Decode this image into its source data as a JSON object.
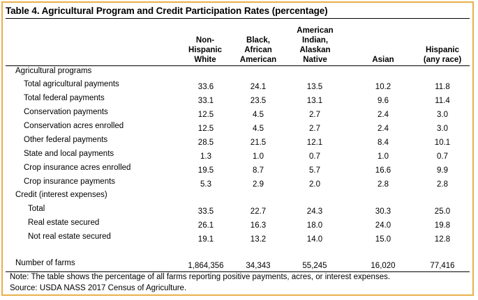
{
  "title": "Table 4. Agricultural Program and Credit Participation Rates (percentage)",
  "columns": [
    "Non-\nHispanic\nWhite",
    "Black,\nAfrican\nAmerican",
    "American\nIndian,\nAlaskan\nNative",
    "Asian",
    "Hispanic\n(any race)"
  ],
  "sections": [
    {
      "heading": "Agricultural programs",
      "rows": [
        {
          "label": "Total agricultural payments",
          "values": [
            "33.6",
            "24.1",
            "13.5",
            "10.2",
            "11.8"
          ]
        },
        {
          "label": "Total federal payments",
          "values": [
            "33.1",
            "23.5",
            "13.1",
            "9.6",
            "11.4"
          ]
        },
        {
          "label": "Conservation payments",
          "values": [
            "12.5",
            "4.5",
            "2.7",
            "2.4",
            "3.0"
          ]
        },
        {
          "label": "Conservation acres enrolled",
          "values": [
            "12.5",
            "4.5",
            "2.7",
            "2.4",
            "3.0"
          ]
        },
        {
          "label": "Other federal payments",
          "values": [
            "28.5",
            "21.5",
            "12.1",
            "8.4",
            "10.1"
          ]
        },
        {
          "label": "State and local payments",
          "values": [
            "1.3",
            "1.0",
            "0.7",
            "1.0",
            "0.7"
          ]
        },
        {
          "label": "Crop insurance acres enrolled",
          "values": [
            "19.5",
            "8.7",
            "5.7",
            "16.6",
            "9.9"
          ]
        },
        {
          "label": "Crop insurance payments",
          "values": [
            "5.3",
            "2.9",
            "2.0",
            "2.8",
            "2.8"
          ]
        }
      ]
    },
    {
      "heading": "Credit (interest expenses)",
      "rows": [
        {
          "label": "Total",
          "values": [
            "33.5",
            "22.7",
            "24.3",
            "30.3",
            "25.0"
          ]
        },
        {
          "label": "Real estate secured",
          "values": [
            "26.1",
            "16.3",
            "18.0",
            "24.0",
            "19.8"
          ]
        },
        {
          "label": "Not real estate secured",
          "values": [
            "19.1",
            "13.2",
            "14.0",
            "15.0",
            "12.8"
          ]
        }
      ]
    }
  ],
  "farms": {
    "label": "Number of farms",
    "values": [
      "1,864,356",
      "34,343",
      "55,245",
      "16,020",
      "77,416"
    ]
  },
  "note": "Note: The table shows the percentage of all farms reporting positive payments, acres, or interest expenses.",
  "source": "Source: USDA NASS 2017 Census of Agriculture."
}
